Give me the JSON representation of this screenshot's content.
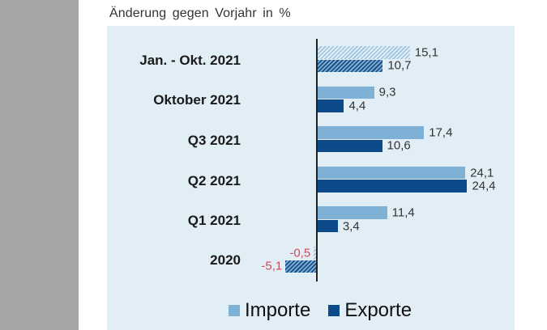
{
  "chart_data": {
    "type": "bar",
    "orientation": "horizontal",
    "title": "",
    "subtitle": "Änderung gegen Vorjahr in %",
    "xlabel": "",
    "ylabel": "",
    "categories": [
      "Jan. - Okt. 2021",
      "Oktober 2021",
      "Q3 2021",
      "Q2 2021",
      "Q1 2021",
      "2020"
    ],
    "series": [
      {
        "name": "Importe",
        "color": "#7fb0d6",
        "values": [
          15.1,
          9.3,
          17.4,
          24.1,
          11.4,
          -0.5
        ],
        "labels": [
          "15,1",
          "9,3",
          "17,4",
          "24,1",
          "11,4",
          "-0,5"
        ]
      },
      {
        "name": "Exporte",
        "color": "#0d4a8a",
        "values": [
          10.7,
          4.4,
          10.6,
          24.4,
          3.4,
          -5.1
        ],
        "labels": [
          "10,7",
          "4,4",
          "10,6",
          "24,4",
          "3,4",
          "-5,1"
        ]
      }
    ],
    "hatched_categories": [
      "Jan. - Okt. 2021",
      "2020"
    ],
    "negative_label_color": "#d2495c",
    "legend_position": "bottom",
    "grid": false,
    "xlim": [
      -8,
      30
    ]
  },
  "header": {
    "subtitle": "Änderung gegen Vorjahr in %"
  },
  "legend": {
    "items": [
      {
        "label": "Importe",
        "color": "#7fb0d6"
      },
      {
        "label": "Exporte",
        "color": "#0d4a8a"
      }
    ]
  }
}
